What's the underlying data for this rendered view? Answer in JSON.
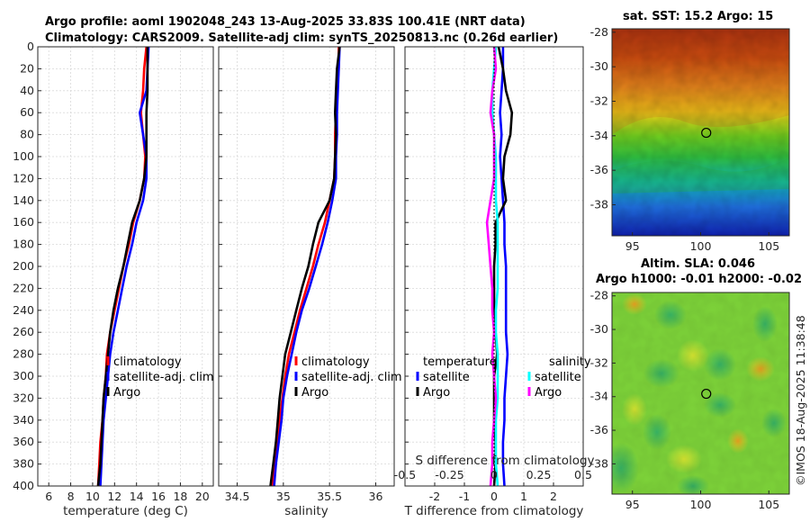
{
  "figure": {
    "title_line1": "Argo profile: aoml 1902048_243 13-Aug-2025 33.83S 100.41E (NRT data)",
    "title_line2": "Climatology: CARS2009. Satellite-adj clim: synTS_20250813.nc (0.26d earlier)",
    "side_stamp": "©IMOS 18-Aug-2025 11:38:48"
  },
  "colors": {
    "climatology": "#ff0000",
    "satellite": "#0000ff",
    "argo": "#000000",
    "salinity_satellite": "#00ffff",
    "salinity_argo": "#ff00ff",
    "grid": "#d9d9d9"
  },
  "depth_axis": {
    "range": [
      0,
      400
    ],
    "ticks": [
      0,
      20,
      40,
      60,
      80,
      100,
      120,
      140,
      160,
      180,
      200,
      220,
      240,
      260,
      280,
      300,
      320,
      340,
      360,
      380,
      400
    ]
  },
  "chart_data": [
    {
      "type": "line",
      "name": "temperature-profile",
      "xlabel": "temperature (deg C)",
      "ylabel": "depth",
      "xlim": [
        5,
        21
      ],
      "xticks": [
        6,
        8,
        10,
        12,
        14,
        16,
        18,
        20
      ],
      "ylim": [
        400,
        0
      ],
      "legend": [
        "climatology",
        "satellite-adj. clim",
        "Argo"
      ],
      "series": [
        {
          "name": "climatology",
          "points": [
            [
              14.9,
              0
            ],
            [
              14.7,
              20
            ],
            [
              14.6,
              40
            ],
            [
              14.4,
              60
            ],
            [
              14.6,
              80
            ],
            [
              14.8,
              100
            ],
            [
              14.7,
              120
            ],
            [
              14.3,
              140
            ],
            [
              13.7,
              160
            ],
            [
              13.3,
              180
            ],
            [
              12.8,
              200
            ],
            [
              12.4,
              220
            ],
            [
              12.0,
              240
            ],
            [
              11.6,
              260
            ],
            [
              11.3,
              280
            ],
            [
              11.2,
              300
            ],
            [
              11.0,
              320
            ],
            [
              10.9,
              340
            ],
            [
              10.7,
              360
            ],
            [
              10.6,
              380
            ],
            [
              10.5,
              400
            ]
          ]
        },
        {
          "name": "satellite-adj. clim",
          "points": [
            [
              15.1,
              0
            ],
            [
              15.0,
              20
            ],
            [
              14.9,
              40
            ],
            [
              14.3,
              60
            ],
            [
              14.6,
              80
            ],
            [
              14.9,
              100
            ],
            [
              14.9,
              120
            ],
            [
              14.6,
              140
            ],
            [
              14.0,
              160
            ],
            [
              13.6,
              180
            ],
            [
              13.1,
              200
            ],
            [
              12.7,
              220
            ],
            [
              12.3,
              240
            ],
            [
              11.9,
              260
            ],
            [
              11.6,
              280
            ],
            [
              11.4,
              300
            ],
            [
              11.2,
              320
            ],
            [
              11.0,
              340
            ],
            [
              10.9,
              360
            ],
            [
              10.8,
              380
            ],
            [
              10.7,
              400
            ]
          ]
        },
        {
          "name": "Argo",
          "points": [
            [
              15.0,
              0
            ],
            [
              15.0,
              20
            ],
            [
              15.0,
              40
            ],
            [
              14.9,
              60
            ],
            [
              14.9,
              80
            ],
            [
              14.9,
              100
            ],
            [
              14.7,
              120
            ],
            [
              14.3,
              140
            ],
            [
              13.6,
              160
            ],
            [
              13.2,
              180
            ],
            [
              12.8,
              200
            ],
            [
              12.3,
              220
            ],
            [
              11.9,
              240
            ],
            [
              11.6,
              260
            ],
            [
              11.4,
              280
            ],
            [
              11.2,
              300
            ],
            [
              11.0,
              320
            ],
            [
              10.9,
              340
            ],
            [
              10.8,
              360
            ],
            [
              10.7,
              380
            ],
            [
              10.5,
              400
            ]
          ]
        }
      ]
    },
    {
      "type": "line",
      "name": "salinity-profile",
      "xlabel": "salinity",
      "ylabel": "",
      "xlim": [
        34.3,
        36.2
      ],
      "xticks": [
        34.5,
        35,
        35.5,
        36
      ],
      "ylim": [
        400,
        0
      ],
      "legend": [
        "climatology",
        "satellite-adj. clim",
        "Argo"
      ],
      "series": [
        {
          "name": "climatology",
          "points": [
            [
              35.6,
              0
            ],
            [
              35.6,
              20
            ],
            [
              35.58,
              40
            ],
            [
              35.57,
              60
            ],
            [
              35.56,
              80
            ],
            [
              35.56,
              100
            ],
            [
              35.55,
              120
            ],
            [
              35.5,
              140
            ],
            [
              35.45,
              160
            ],
            [
              35.38,
              180
            ],
            [
              35.32,
              200
            ],
            [
              35.25,
              220
            ],
            [
              35.18,
              240
            ],
            [
              35.12,
              260
            ],
            [
              35.06,
              280
            ],
            [
              35.02,
              300
            ],
            [
              34.99,
              320
            ],
            [
              34.96,
              340
            ],
            [
              34.93,
              360
            ],
            [
              34.91,
              380
            ],
            [
              34.88,
              400
            ]
          ]
        },
        {
          "name": "satellite-adj. clim",
          "points": [
            [
              35.61,
              0
            ],
            [
              35.6,
              20
            ],
            [
              35.59,
              40
            ],
            [
              35.58,
              60
            ],
            [
              35.58,
              80
            ],
            [
              35.57,
              100
            ],
            [
              35.57,
              120
            ],
            [
              35.53,
              140
            ],
            [
              35.48,
              160
            ],
            [
              35.42,
              180
            ],
            [
              35.35,
              200
            ],
            [
              35.28,
              220
            ],
            [
              35.2,
              240
            ],
            [
              35.14,
              260
            ],
            [
              35.09,
              280
            ],
            [
              35.04,
              300
            ],
            [
              35.0,
              320
            ],
            [
              34.98,
              340
            ],
            [
              34.95,
              360
            ],
            [
              34.92,
              380
            ],
            [
              34.9,
              400
            ]
          ]
        },
        {
          "name": "Argo",
          "points": [
            [
              35.61,
              0
            ],
            [
              35.58,
              20
            ],
            [
              35.57,
              40
            ],
            [
              35.56,
              60
            ],
            [
              35.57,
              80
            ],
            [
              35.56,
              100
            ],
            [
              35.55,
              120
            ],
            [
              35.5,
              140
            ],
            [
              35.38,
              160
            ],
            [
              35.32,
              180
            ],
            [
              35.27,
              200
            ],
            [
              35.2,
              220
            ],
            [
              35.14,
              240
            ],
            [
              35.08,
              260
            ],
            [
              35.02,
              280
            ],
            [
              34.99,
              300
            ],
            [
              34.96,
              320
            ],
            [
              34.94,
              340
            ],
            [
              34.92,
              360
            ],
            [
              34.89,
              380
            ],
            [
              34.86,
              400
            ]
          ]
        }
      ]
    },
    {
      "type": "line",
      "name": "difference-profile",
      "xlabel": "T difference from climatology",
      "xlabel_top": "S difference from climatology",
      "ylabel": "",
      "xlim": [
        -3,
        3
      ],
      "xticks": [
        -2,
        -1,
        0,
        1,
        2
      ],
      "xticks_top": [
        -0.5,
        -0.25,
        0,
        0.25,
        0.5
      ],
      "xticks_top_labels": [
        "-0.5",
        "-0.25",
        "0",
        "0.25",
        "0.5"
      ],
      "ylim": [
        400,
        0
      ],
      "legend_temperature_title": "temperature",
      "legend_salinity_title": "salinity",
      "legend": [
        "satellite",
        "Argo",
        "satellite",
        "Argo"
      ],
      "series": [
        {
          "name": "temperature satellite",
          "points": [
            [
              0.3,
              0
            ],
            [
              0.3,
              20
            ],
            [
              0.25,
              40
            ],
            [
              0.2,
              60
            ],
            [
              0.25,
              80
            ],
            [
              0.2,
              100
            ],
            [
              0.25,
              120
            ],
            [
              0.3,
              140
            ],
            [
              0.35,
              160
            ],
            [
              0.35,
              180
            ],
            [
              0.4,
              200
            ],
            [
              0.4,
              220
            ],
            [
              0.4,
              240
            ],
            [
              0.4,
              260
            ],
            [
              0.45,
              280
            ],
            [
              0.4,
              300
            ],
            [
              0.35,
              320
            ],
            [
              0.35,
              340
            ],
            [
              0.3,
              360
            ],
            [
              0.3,
              380
            ],
            [
              0.35,
              400
            ]
          ]
        },
        {
          "name": "temperature Argo",
          "points": [
            [
              0.15,
              0
            ],
            [
              0.3,
              20
            ],
            [
              0.4,
              40
            ],
            [
              0.6,
              60
            ],
            [
              0.55,
              80
            ],
            [
              0.35,
              100
            ],
            [
              0.3,
              120
            ],
            [
              0.4,
              140
            ],
            [
              0.05,
              160
            ],
            [
              0.05,
              180
            ],
            [
              0.0,
              200
            ],
            [
              0.0,
              220
            ],
            [
              0.0,
              240
            ],
            [
              0.05,
              260
            ],
            [
              0.1,
              280
            ],
            [
              0.0,
              300
            ],
            [
              0.0,
              320
            ],
            [
              0.0,
              340
            ],
            [
              0.05,
              360
            ],
            [
              0.05,
              380
            ],
            [
              0.0,
              400
            ]
          ]
        },
        {
          "name": "salinity satellite",
          "points": [
            [
              0.01,
              0
            ],
            [
              0.0,
              20
            ],
            [
              -0.01,
              40
            ],
            [
              -0.01,
              60
            ],
            [
              0.0,
              80
            ],
            [
              0.01,
              100
            ],
            [
              0.01,
              120
            ],
            [
              0.01,
              140
            ],
            [
              0.02,
              160
            ],
            [
              0.02,
              180
            ],
            [
              0.02,
              200
            ],
            [
              0.02,
              220
            ],
            [
              0.01,
              240
            ],
            [
              0.01,
              260
            ],
            [
              0.02,
              280
            ],
            [
              0.02,
              300
            ],
            [
              0.02,
              320
            ],
            [
              0.01,
              340
            ],
            [
              0.01,
              360
            ],
            [
              0.01,
              380
            ],
            [
              0.02,
              400
            ]
          ]
        },
        {
          "name": "salinity Argo",
          "points": [
            [
              0.0,
              0
            ],
            [
              0.01,
              20
            ],
            [
              -0.01,
              40
            ],
            [
              -0.02,
              60
            ],
            [
              0.0,
              80
            ],
            [
              0.0,
              100
            ],
            [
              0.0,
              120
            ],
            [
              -0.02,
              140
            ],
            [
              -0.04,
              160
            ],
            [
              -0.03,
              180
            ],
            [
              -0.02,
              200
            ],
            [
              -0.01,
              220
            ],
            [
              -0.01,
              240
            ],
            [
              0.0,
              260
            ],
            [
              -0.01,
              280
            ],
            [
              0.0,
              300
            ],
            [
              0.01,
              320
            ],
            [
              0.0,
              340
            ],
            [
              -0.01,
              360
            ],
            [
              -0.01,
              380
            ],
            [
              -0.02,
              400
            ]
          ]
        }
      ]
    },
    {
      "type": "heatmap",
      "name": "sst-map",
      "title": "sat. SST: 15.2 Argo: 15",
      "xticks": [
        95,
        100,
        105
      ],
      "yticks": [
        -28,
        -30,
        -32,
        -34,
        -36,
        -38
      ],
      "xlim": [
        93.5,
        106.5
      ],
      "ylim": [
        -39.8,
        -27.8
      ],
      "float_position": {
        "lon": 100.41,
        "lat": -33.83
      }
    },
    {
      "type": "heatmap",
      "name": "sla-map",
      "title_line1": "Altim. SLA: 0.046",
      "title_line2": "Argo h1000: -0.01 h2000: -0.02",
      "xticks": [
        95,
        100,
        105
      ],
      "yticks": [
        -28,
        -30,
        -32,
        -34,
        -36,
        -38
      ],
      "xlim": [
        93.5,
        106.5
      ],
      "ylim": [
        -39.8,
        -27.8
      ],
      "float_position": {
        "lon": 100.41,
        "lat": -33.83
      }
    }
  ]
}
